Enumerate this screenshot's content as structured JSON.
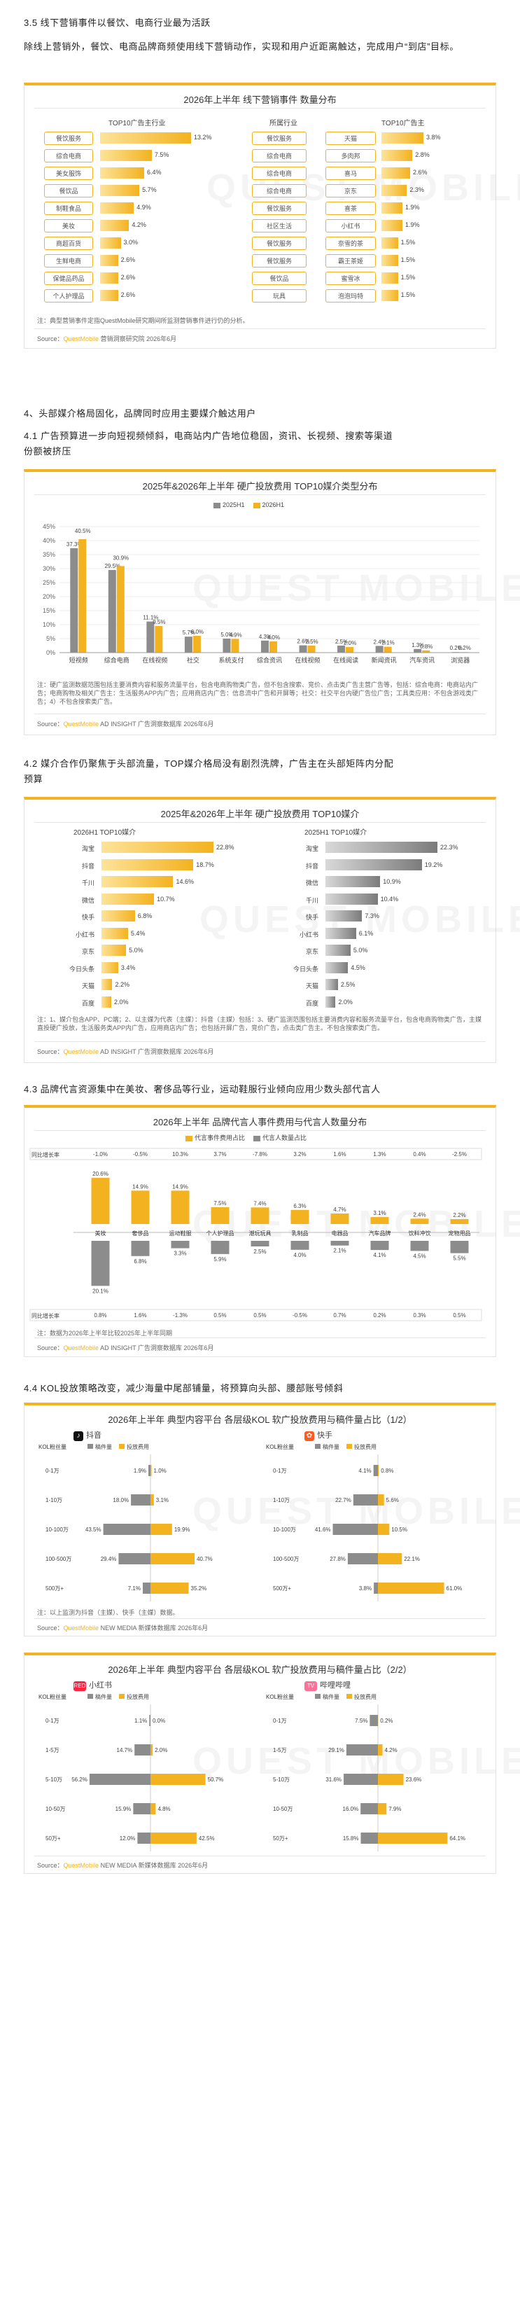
{
  "s35": {
    "heading": "3.5 线下营销事件以餐饮、电商行业最为活跃",
    "para": "除线上营销外，餐饮、电商品牌商频使用线下营销动作，实现和用户近距离触达，完成用户“到店”目标。",
    "card_title": "2026年上半年 线下营销事件 数量分布",
    "left_title": "TOP10广告主行业",
    "mid_title": "所属行业",
    "right_title": "TOP10广告主",
    "industries": [
      {
        "name": "餐饮服务",
        "value": "13.2%",
        "v": 13.2
      },
      {
        "name": "综合电商",
        "value": "7.5%",
        "v": 7.5
      },
      {
        "name": "美女服饰",
        "value": "6.4%",
        "v": 6.4
      },
      {
        "name": "餐饮品",
        "value": "5.7%",
        "v": 5.7
      },
      {
        "name": "制鞋食品",
        "value": "4.9%",
        "v": 4.9
      },
      {
        "name": "美妆",
        "value": "4.2%",
        "v": 4.2
      },
      {
        "name": "商超百货",
        "value": "3.0%",
        "v": 3.0
      },
      {
        "name": "生鲜电商",
        "value": "2.6%",
        "v": 2.6
      },
      {
        "name": "保健品药品",
        "value": "2.6%",
        "v": 2.6
      },
      {
        "name": "个人护理品",
        "value": "2.6%",
        "v": 2.6
      }
    ],
    "advertisers": [
      {
        "industry": "餐饮服务",
        "name": "天猫",
        "value": "3.8%",
        "v": 3.8
      },
      {
        "industry": "综合电商",
        "name": "多肉邦",
        "value": "2.8%",
        "v": 2.8
      },
      {
        "industry": "综合电商",
        "name": "喜马",
        "value": "2.6%",
        "v": 2.6
      },
      {
        "industry": "综合电商",
        "name": "京东",
        "value": "2.3%",
        "v": 2.3
      },
      {
        "industry": "餐饮服务",
        "name": "喜茶",
        "value": "1.9%",
        "v": 1.9
      },
      {
        "industry": "社区生活",
        "name": "小红书",
        "value": "1.9%",
        "v": 1.9
      },
      {
        "industry": "餐饮服务",
        "name": "奈雪的茶",
        "value": "1.5%",
        "v": 1.5
      },
      {
        "industry": "餐饮服务",
        "name": "霸王茶姬",
        "value": "1.5%",
        "v": 1.5
      },
      {
        "industry": "餐饮品",
        "name": "蜜雪冰",
        "value": "1.5%",
        "v": 1.5
      },
      {
        "industry": "玩具",
        "name": "泡泡玛特",
        "value": "1.5%",
        "v": 1.5
      }
    ],
    "note": "注：典型营销事件定指QuestMobile研究期间所监测营销事件进行仍的分析。",
    "source_prefix": "Source：",
    "source_brand": "QuestMobile",
    "source_rest": " 营销洞察研究院 2026年6月"
  },
  "s4": {
    "heading": "4、头部媒介格局固化，品牌同时应用主要媒介触达用户"
  },
  "s41": {
    "heading_lines": [
      "4.1 广告预算进一步向短视频倾斜，电商站内广告地位稳固，资讯、长视频、搜索等渠道",
      "份额被挤压"
    ],
    "card_title": "2025年&2026年上半年 硬广投放费用 TOP10媒介类型分布",
    "legend": [
      "2025H1",
      "2026H1"
    ],
    "y_ticks": [
      "0%",
      "5%",
      "10%",
      "15%",
      "20%",
      "25%",
      "30%",
      "35%",
      "40%",
      "45%"
    ],
    "note": "注：硬广监测数据范围包括主要消费内容和服务流量平台，包含电商购物类广告，但不包含搜索、竞价、点击类广告主营广告等，包括：综合电商：电商站内广告；电商购物及相关广告主：生活服务APP内广告；应用商店内广告：信息流中广告和开屏等；社交：社交平台内硬广告位广告；工具类应用：不包含游戏类广告；4）不包含搜索类广告。",
    "source_prefix": "Source：",
    "source_brand": "QuestMobile",
    "source_rest": " AD INSIGHT 广告洞察数据库 2026年6月"
  },
  "s42": {
    "heading_lines": [
      "4.2 媒介合作仍聚焦于头部流量，TOP媒介格局没有剧烈洗牌，广告主在头部矩阵内分配",
      "预算"
    ],
    "card_title": "2025年&2026年上半年 硬广投放费用 TOP10媒介",
    "left_title": "2026H1 TOP10媒介",
    "right_title": "2025H1 TOP10媒介",
    "note": "注：1、媒介包含APP、PC端；2、以主媒为代表（主媒）：抖音（主媒）包括：3、硬广监测范围包括主要消费内容和服务流量平台，包含电商购物类广告，主媒直投硬广投放，生活服务类APP内广告，应用商店内广告；也包括开屏广告，竞价广告，点击类广告主。不包含搜索类广告。",
    "source_prefix": "Source：",
    "source_brand": "QuestMobile",
    "source_rest": " AD INSIGHT 广告洞察数据库 2026年6月"
  },
  "s43": {
    "heading": "4.3 品牌代言资源集中在美妆、奢侈品等行业，运动鞋服行业倾向应用少数头部代言人",
    "card_title": "2026年上半年 品牌代言人事件费用与代言人数量分布",
    "legend": [
      "代言事件费用占比",
      "代言人数量占比"
    ],
    "top_label": "同比增长率",
    "bottom_label": "同比增长率",
    "top_growth": [
      "-1.0%",
      "-0.5%",
      "10.3%",
      "3.7%",
      "-7.8%",
      "3.2%",
      "1.6%",
      "1.3%",
      "0.4%",
      "-2.5%"
    ],
    "bottom_growth": [
      "0.8%",
      "1.6%",
      "-1.3%",
      "0.5%",
      "0.5%",
      "-0.5%",
      "0.7%",
      "0.2%",
      "0.3%",
      "0.5%"
    ],
    "cats": [
      "美妆",
      "奢侈品",
      "运动鞋服",
      "个人护理品",
      "潮玩玩具",
      "乳制品",
      "电器品",
      "汽车品牌",
      "饮料冲饮",
      "宠物用品"
    ],
    "top_vals": [
      20.6,
      14.9,
      14.9,
      7.5,
      7.4,
      6.3,
      4.7,
      3.1,
      2.4,
      2.2
    ],
    "bottom_vals": [
      20.1,
      6.8,
      3.3,
      5.9,
      2.5,
      4.0,
      2.1,
      4.1,
      4.5,
      5.5
    ],
    "note": "注：数据为2026年上半年比较2025年上半年同期",
    "source_prefix": "Source：",
    "source_brand": "QuestMobile",
    "source_rest": " AD INSIGHT 广告洞察数据库 2026年6月"
  },
  "s44": {
    "heading": "4.4 KOL投放策略改变，减少海量中尾部铺量，将预算向头部、腰部账号倾斜",
    "card1": {
      "title": "2026年上半年 典型内容平台 各层级KOL 软广投放费用与稿件量占比（1/2）",
      "left_platform": "抖音",
      "right_platform": "快手",
      "tier_label": "KOL粉丝量",
      "legend": [
        "稿件量",
        "投放费用"
      ],
      "tiers": [
        "0-1万",
        "1-10万",
        "10-100万",
        "100-500万",
        "500万+"
      ],
      "left_posts": [
        "1.9%",
        "18.0%",
        "43.5%",
        "29.4%",
        "7.1%"
      ],
      "left_posts_v": [
        1.9,
        18.0,
        43.5,
        29.4,
        7.1
      ],
      "left_spend": [
        "1.0%",
        "3.1%",
        "19.9%",
        "40.7%",
        "35.2%"
      ],
      "left_spend_v": [
        1.0,
        3.1,
        19.9,
        40.7,
        35.2
      ],
      "right_posts": [
        "4.1%",
        "22.7%",
        "41.6%",
        "27.8%",
        "3.8%"
      ],
      "right_posts_v": [
        4.1,
        22.7,
        41.6,
        27.8,
        3.8
      ],
      "right_spend": [
        "0.8%",
        "5.6%",
        "10.5%",
        "22.1%",
        "61.0%"
      ],
      "right_spend_v": [
        0.8,
        5.6,
        10.5,
        22.1,
        61.0
      ],
      "note": "注：以上监测为抖音（主媒）、快手（主媒）数据。",
      "source_prefix": "Source：",
      "source_brand": "QuestMobile",
      "source_rest": " NEW MEDIA 新媒体数据库 2026年6月"
    },
    "card2": {
      "title": "2026年上半年 典型内容平台 各层级KOL 软广投放费用与稿件量占比（2/2）",
      "left_platform": "小红书",
      "right_platform": "哔哩哔哩",
      "tier_label": "KOL粉丝量",
      "legend": [
        "稿件量",
        "投放费用"
      ],
      "tiers": [
        "0-1万",
        "1-5万",
        "5-10万",
        "10-50万",
        "50万+"
      ],
      "left_posts": [
        "1.1%",
        "14.7%",
        "56.2%",
        "15.9%",
        "12.0%"
      ],
      "left_posts_v": [
        1.1,
        14.7,
        56.2,
        15.9,
        12.0
      ],
      "left_spend": [
        "0.0%",
        "2.0%",
        "50.7%",
        "4.8%",
        "42.5%"
      ],
      "left_spend_v": [
        0.0,
        2.0,
        50.7,
        4.8,
        42.5
      ],
      "right_posts": [
        "7.5%",
        "29.1%",
        "31.6%",
        "16.0%",
        "15.8%"
      ],
      "right_posts_v": [
        7.5,
        29.1,
        31.6,
        16.0,
        15.8
      ],
      "right_spend": [
        "0.2%",
        "4.2%",
        "23.6%",
        "7.9%",
        "64.1%"
      ],
      "right_spend_v": [
        0.2,
        4.2,
        23.6,
        7.9,
        64.1
      ],
      "source_prefix": "Source：",
      "source_brand": "QuestMobile",
      "source_rest": " NEW MEDIA 新媒体数据库 2026年6月"
    }
  },
  "chart_data": [
    {
      "type": "bar",
      "title": "2026年上半年 线下营销事件 数量分布 - TOP10广告主行业",
      "categories": [
        "餐饮服务",
        "综合电商",
        "美女服饰",
        "餐饮品",
        "制鞋食品",
        "美妆",
        "商超百货",
        "生鲜电商",
        "保健品药品",
        "个人护理品"
      ],
      "values": [
        13.2,
        7.5,
        6.4,
        5.7,
        4.9,
        4.2,
        3.0,
        2.6,
        2.6,
        2.6
      ]
    },
    {
      "type": "bar",
      "title": "2026年上半年 线下营销事件 数量分布 - TOP10广告主",
      "categories": [
        "天猫",
        "多肉邦",
        "喜马",
        "京东",
        "喜茶",
        "小红书",
        "奈雪的茶",
        "霸王茶姬",
        "蜜雪冰",
        "泡泡玛特"
      ],
      "values": [
        3.8,
        2.8,
        2.6,
        2.3,
        1.9,
        1.9,
        1.5,
        1.5,
        1.5,
        1.5
      ]
    },
    {
      "type": "bar",
      "title": "2025年&2026年上半年 硬广投放费用 TOP10媒介类型分布",
      "categories": [
        "短视频",
        "综合电商",
        "在线视频",
        "社交",
        "系统支付",
        "综合资讯",
        "在线视频",
        "在线阅读",
        "新闻资讯",
        "汽车资讯",
        "浏览器"
      ],
      "series": [
        {
          "name": "2025H1",
          "values": [
            37.3,
            29.5,
            11.1,
            5.7,
            5.0,
            4.3,
            2.6,
            2.5,
            2.4,
            1.3,
            0.2
          ]
        },
        {
          "name": "2026H1",
          "values": [
            40.5,
            30.9,
            9.5,
            6.0,
            4.9,
            4.0,
            2.5,
            2.0,
            2.1,
            0.8,
            0.2
          ]
        }
      ],
      "ylim": [
        0,
        45
      ]
    },
    {
      "type": "bar",
      "title": "2026H1 TOP10媒介",
      "categories": [
        "淘宝",
        "抖音",
        "千川",
        "微信",
        "快手",
        "小红书",
        "京东",
        "今日头条",
        "天猫",
        "百度"
      ],
      "values": [
        22.8,
        18.7,
        14.6,
        10.7,
        6.8,
        5.4,
        5.0,
        3.4,
        2.2,
        2.0
      ]
    },
    {
      "type": "bar",
      "title": "2025H1 TOP10媒介",
      "categories": [
        "淘宝",
        "抖音",
        "微信",
        "千川",
        "快手",
        "小红书",
        "京东",
        "今日头条",
        "天猫",
        "百度"
      ],
      "values": [
        22.3,
        19.2,
        10.9,
        10.4,
        7.3,
        6.1,
        5.0,
        4.5,
        2.5,
        2.0
      ]
    },
    {
      "type": "bar",
      "title": "2026年上半年 品牌代言人事件费用与代言人数量分布",
      "categories": [
        "美妆",
        "奢侈品",
        "运动鞋服",
        "个人护理品",
        "潮玩玩具",
        "乳制品",
        "电器品",
        "汽车品牌",
        "饮料冲饮",
        "宠物用品"
      ],
      "series": [
        {
          "name": "代言事件费用占比",
          "values": [
            20.6,
            14.9,
            14.9,
            7.5,
            7.4,
            6.3,
            4.7,
            3.1,
            2.4,
            2.2
          ]
        },
        {
          "name": "代言人数量占比",
          "values": [
            20.1,
            6.8,
            3.3,
            5.9,
            2.5,
            4.0,
            2.1,
            4.1,
            4.5,
            5.5
          ]
        }
      ]
    },
    {
      "type": "bar",
      "title": "抖音 各层级KOL",
      "categories": [
        "0-1万",
        "1-10万",
        "10-100万",
        "100-500万",
        "500万+"
      ],
      "series": [
        {
          "name": "稿件量",
          "values": [
            1.9,
            18.0,
            43.5,
            29.4,
            7.1
          ]
        },
        {
          "name": "投放费用",
          "values": [
            1.0,
            3.1,
            19.9,
            40.7,
            35.2
          ]
        }
      ]
    },
    {
      "type": "bar",
      "title": "快手 各层级KOL",
      "categories": [
        "0-1万",
        "1-10万",
        "10-100万",
        "100-500万",
        "500万+"
      ],
      "series": [
        {
          "name": "稿件量",
          "values": [
            4.1,
            22.7,
            41.6,
            27.8,
            3.8
          ]
        },
        {
          "name": "投放费用",
          "values": [
            0.8,
            5.6,
            10.5,
            22.1,
            61.0
          ]
        }
      ]
    },
    {
      "type": "bar",
      "title": "小红书 各层级KOL",
      "categories": [
        "0-1万",
        "1-5万",
        "5-10万",
        "10-50万",
        "50万+"
      ],
      "series": [
        {
          "name": "稿件量",
          "values": [
            1.1,
            14.7,
            56.2,
            15.9,
            12.0
          ]
        },
        {
          "name": "投放费用",
          "values": [
            0.0,
            2.0,
            50.7,
            4.8,
            42.5
          ]
        }
      ]
    },
    {
      "type": "bar",
      "title": "哔哩哔哩 各层级KOL",
      "categories": [
        "0-1万",
        "1-5万",
        "5-10万",
        "10-50万",
        "50万+"
      ],
      "series": [
        {
          "name": "稿件量",
          "values": [
            7.5,
            29.1,
            31.6,
            16.0,
            15.8
          ]
        },
        {
          "name": "投放费用",
          "values": [
            0.2,
            4.2,
            23.6,
            7.9,
            64.1
          ]
        }
      ]
    }
  ]
}
